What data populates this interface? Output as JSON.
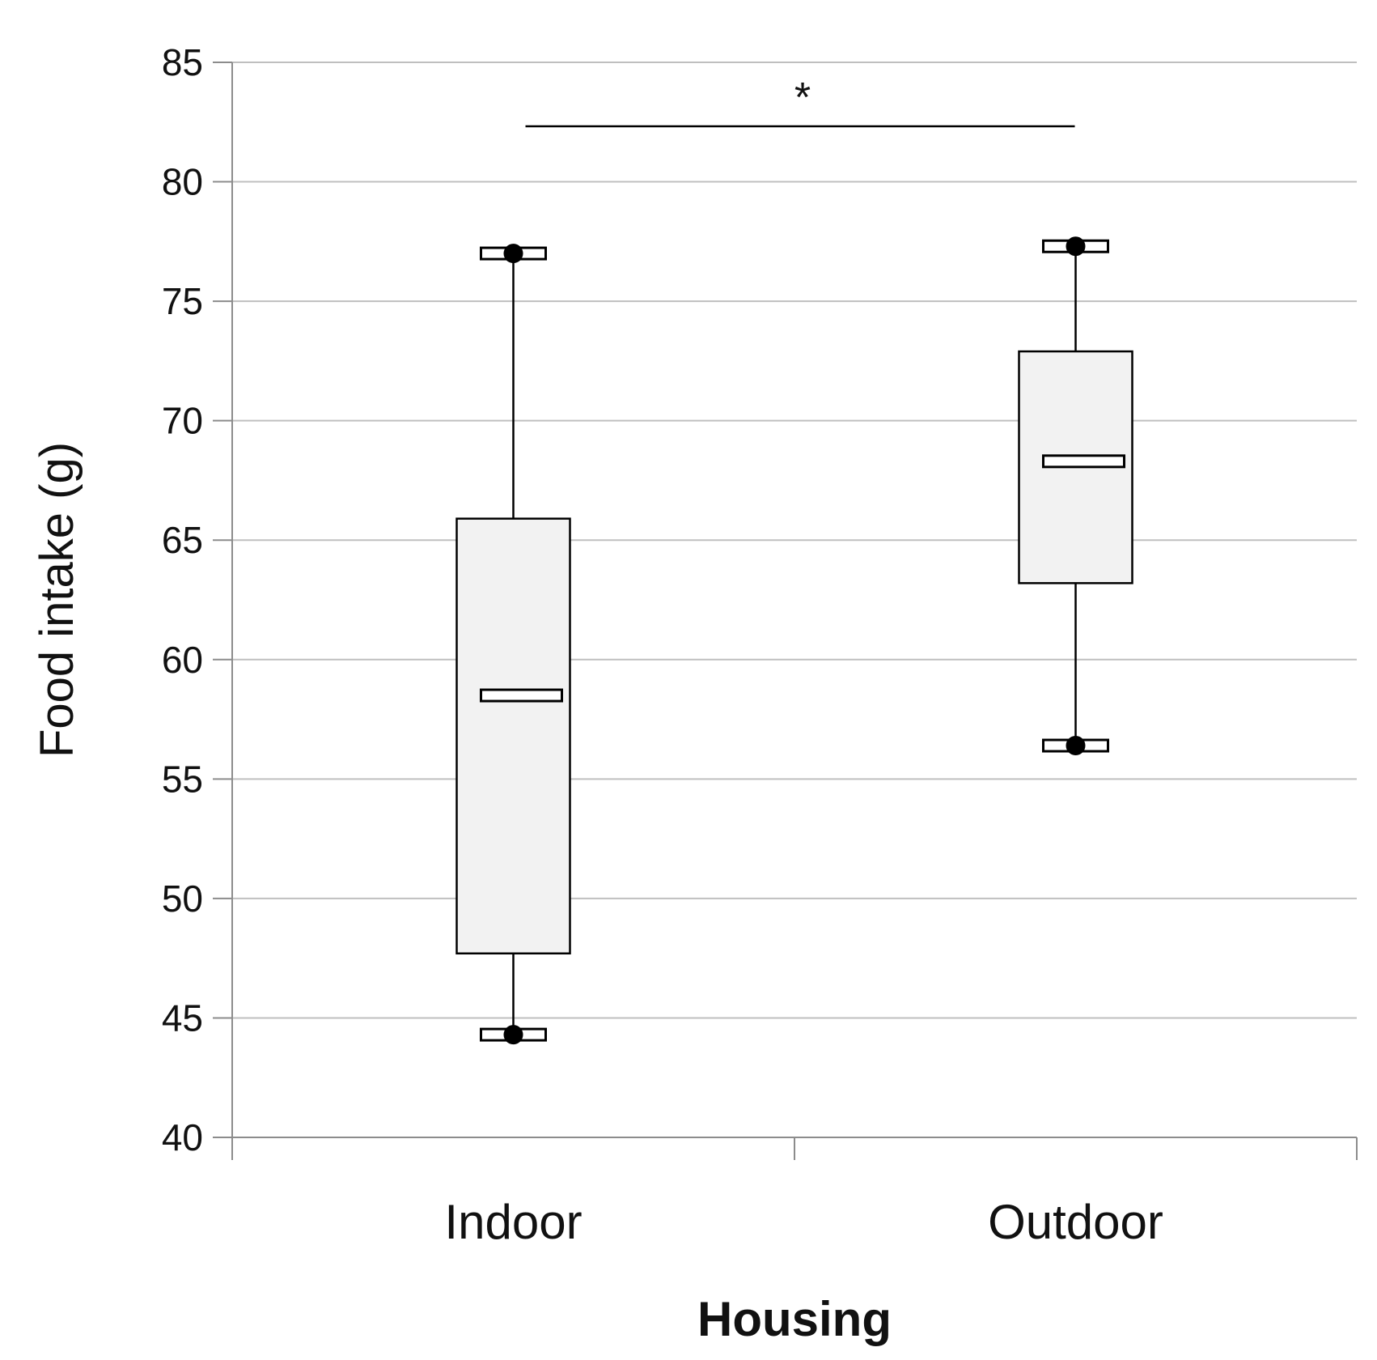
{
  "chart_data": {
    "type": "box",
    "xlabel": "Housing",
    "ylabel": "Food intake (g)",
    "ylim": [
      40,
      85
    ],
    "yticks": [
      40,
      45,
      50,
      55,
      60,
      65,
      70,
      75,
      80,
      85
    ],
    "grid": true,
    "categories": [
      "Indoor",
      "Outdoor"
    ],
    "boxes": [
      {
        "category": "Indoor",
        "min": 44.3,
        "q1": 47.7,
        "median": 58.5,
        "q3": 65.9,
        "max": 77.0
      },
      {
        "category": "Outdoor",
        "min": 56.4,
        "q1": 63.2,
        "median": 68.3,
        "q3": 72.9,
        "max": 77.3
      }
    ],
    "annotations": [
      {
        "type": "significance",
        "between": [
          "Indoor",
          "Outdoor"
        ],
        "label": "*"
      }
    ],
    "colors": {
      "box_fill": "#f2f2f2",
      "stroke": "#000000",
      "grid": "#bfbfbf",
      "axis": "#8c8c8c"
    }
  }
}
